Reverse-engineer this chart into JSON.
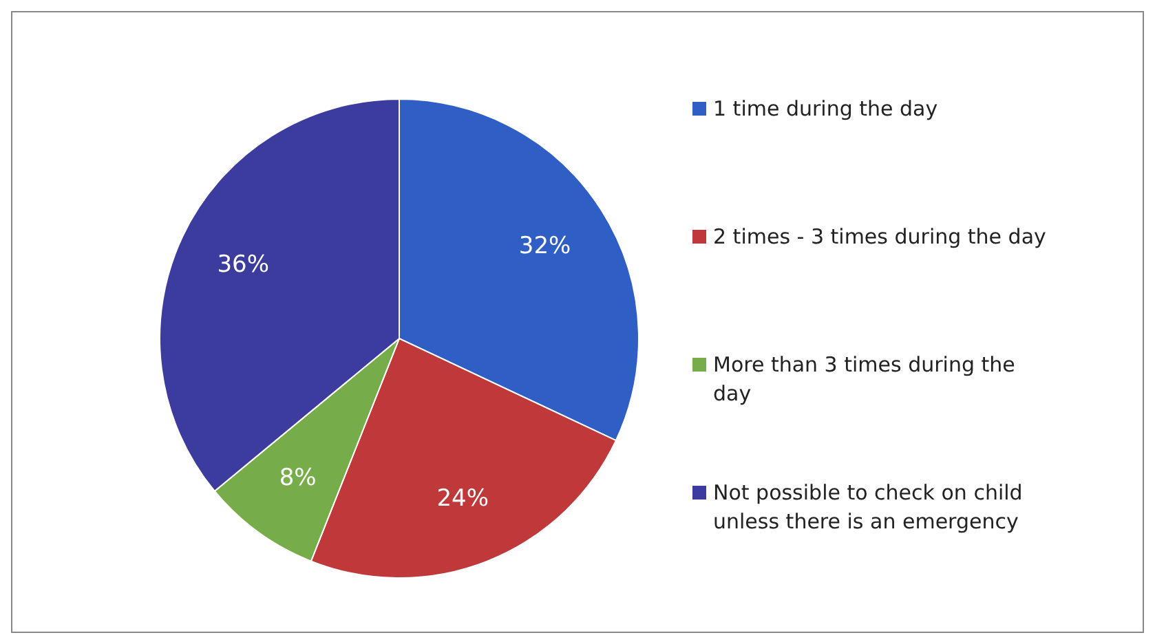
{
  "chart_data": {
    "type": "pie",
    "categories": [
      "1 time during the day",
      "2 times - 3 times during the day",
      "More than 3 times during the day",
      "Not possible to check on child unless there is an emergency"
    ],
    "values": [
      32,
      24,
      8,
      36
    ],
    "value_labels": [
      "32%",
      "24%",
      "8%",
      "36%"
    ],
    "colors": [
      "#2f5fc4",
      "#c0393a",
      "#76ad4a",
      "#3b3c9e"
    ],
    "legend": "right"
  }
}
